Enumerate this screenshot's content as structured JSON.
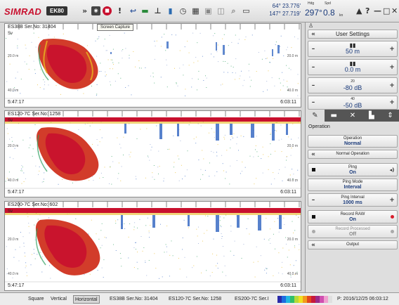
{
  "app": {
    "logo": "SIMRAD",
    "model": "EK80"
  },
  "toolbar": {
    "icons": [
      "chevron-down-icon",
      "record-icon",
      "stop-icon",
      "alert-icon",
      "back-arrow-icon",
      "line-icon",
      "depth-icon",
      "bar-chart-icon",
      "clock-icon",
      "grid-icon",
      "image-icon",
      "layers-icon",
      "zoom-icon",
      "tag-icon"
    ],
    "tooltip": "Screen Capture"
  },
  "navigation": {
    "lat": "64° 23.776'",
    "lon": "147° 27.719'",
    "hdg_label": "Hdg",
    "hdg_value": "297°",
    "spd_label": "Spd",
    "spd_value": "0.8",
    "spd_unit": "kn"
  },
  "window_controls": {
    "alert": "▲",
    "help": "?",
    "minimize": "—",
    "maximize": "□",
    "close": "✕"
  },
  "panels": [
    {
      "title": "ES38B Ser.No: 31404",
      "sv": "Sv",
      "depth_top": "20.0 m",
      "depth_bottom": "40.0 m",
      "time_left": "5:47:17",
      "time_right": "6:03:11",
      "color": "#3a6cc4"
    },
    {
      "title": "ES120-7C Ser.No: 1258",
      "sv": "Sv",
      "depth_top": "20.0 m",
      "depth_bottom": "40.0 m",
      "time_left": "5:47:17",
      "time_right": "6:03:11",
      "color": "#3a6cc4"
    },
    {
      "title": "ES200-7C Ser.No: 602",
      "sv": "Sv",
      "depth_top": "20.0 m",
      "depth_bottom": "40.0 m",
      "time_left": "5:47:17",
      "time_right": "6:03:11",
      "color": "#3a6cc4"
    }
  ],
  "right_panel": {
    "header_icon": "person-icon",
    "user_settings": "User Settings",
    "range": "50 m",
    "range_start": "0.0 m",
    "gain_top": "20",
    "gain": "-80 dB",
    "tvg_top": "40",
    "tvg": "-50 dB",
    "tabs": [
      "pen-icon",
      "display-icon",
      "tools-icon",
      "chart-icon",
      "expand-icon"
    ],
    "operation_heading": "Operation",
    "operation_label": "Operation",
    "operation_value": "Normal",
    "normal_operation": "Normal Operation",
    "ping_label": "Ping",
    "ping_value": "On",
    "ping_mode_label": "Ping Mode",
    "ping_mode_value": "Interval",
    "ping_interval_label": "Ping Interval",
    "ping_interval_value": "1000 ms",
    "record_raw_label": "Record RAW",
    "record_raw_value": "On",
    "record_processed_label": "Record Processed",
    "record_processed_value": "Off",
    "output": "Output"
  },
  "statusbar": {
    "tabs": [
      "Square",
      "Vertical",
      "Horizontal",
      "ES38B Ser.No: 31404",
      "ES120-7C Ser.No: 1258",
      "ES200-7C Ser.I"
    ],
    "selected_tab": "Horizontal",
    "palette": [
      "#2a2aa8",
      "#1e6be0",
      "#21b7e0",
      "#2fbf6a",
      "#b5d93a",
      "#f0e020",
      "#f29b1c",
      "#e2471e",
      "#c81a3a",
      "#9a2a8a",
      "#d04fb0",
      "#f0a0d0",
      "#e0e0e0"
    ],
    "playback": "P: 2016/12/25  06:03:12"
  }
}
